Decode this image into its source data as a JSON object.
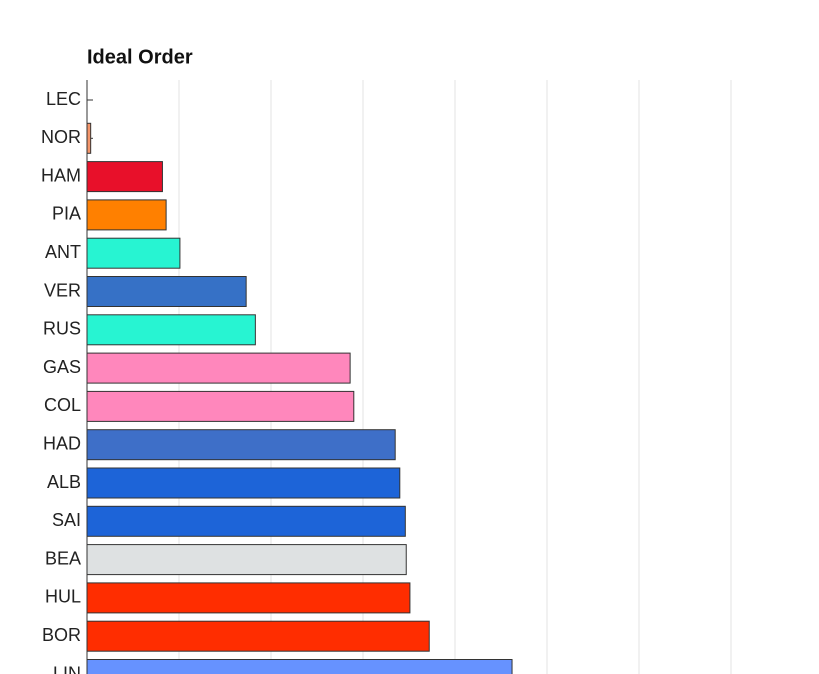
{
  "chart_data": {
    "type": "barh",
    "title": "Ideal Order",
    "categories": [
      "LEC",
      "NOR",
      "HAM",
      "PIA",
      "ANT",
      "VER",
      "RUS",
      "GAS",
      "COL",
      "HAD",
      "ALB",
      "SAI",
      "BEA",
      "HUL",
      "BOR",
      "LIN"
    ],
    "values": [
      0,
      0.04,
      0.82,
      0.86,
      1.01,
      1.73,
      1.83,
      2.86,
      2.9,
      3.35,
      3.4,
      3.46,
      3.47,
      3.51,
      3.72,
      4.62
    ],
    "colors": [
      "#e8002d",
      "#f4956a",
      "#e8102a",
      "#ff8000",
      "#27f4d2",
      "#3671c6",
      "#27f4d2",
      "#ff87bc",
      "#ff87bc",
      "#3e6fc8",
      "#1d64d8",
      "#1d64d8",
      "#dee1e2",
      "#ff2d00",
      "#ff2d00",
      "#6692ff"
    ],
    "xlim": [
      0,
      8
    ],
    "xticks": [
      1,
      2,
      3,
      4,
      5,
      6,
      7
    ],
    "grid": true
  }
}
